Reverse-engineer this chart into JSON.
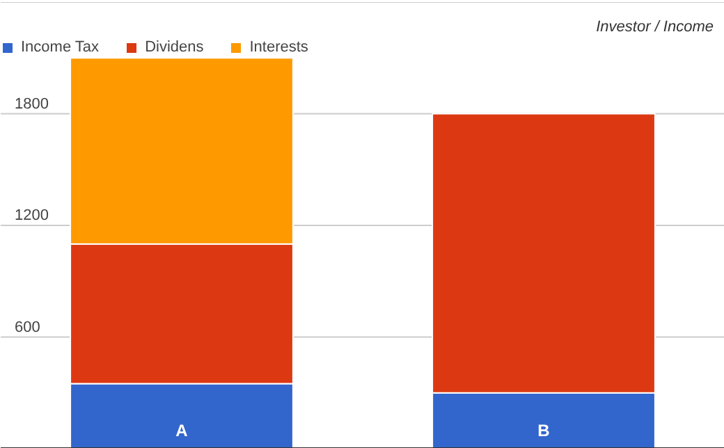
{
  "chart_data": {
    "type": "bar",
    "title": "Investor / Income",
    "categories": [
      "A",
      "B"
    ],
    "stacked": true,
    "series": [
      {
        "name": "Income Tax",
        "color": "#3366cc",
        "values": [
          350,
          300
        ]
      },
      {
        "name": "Dividens",
        "color": "#dc3912",
        "values": [
          750,
          1500
        ]
      },
      {
        "name": "Interests",
        "color": "#ff9900",
        "values": [
          1000,
          null
        ]
      }
    ],
    "ylim": [
      0,
      2400
    ],
    "yticks": [
      600,
      1200,
      1800,
      {
        "value": 2400,
        "label": null
      }
    ],
    "grid": "y",
    "legend": "top left"
  }
}
